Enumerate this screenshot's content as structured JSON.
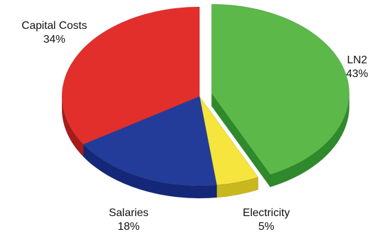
{
  "chart_data": {
    "type": "pie",
    "style": "3d-exploded",
    "slices": [
      {
        "name": "LN2",
        "value": 43,
        "value_label": "43%",
        "color": "#5cb848",
        "side_color": "#2e8a2a",
        "exploded": true
      },
      {
        "name": "Electricity",
        "value": 5,
        "value_label": "5%",
        "color": "#f5e53c",
        "side_color": "#c9b81d",
        "exploded": false
      },
      {
        "name": "Salaries",
        "value": 18,
        "value_label": "18%",
        "color": "#233c9a",
        "side_color": "#152778",
        "exploded": false
      },
      {
        "name": "Capital Costs",
        "value": 34,
        "value_label": "34%",
        "color": "#e22f2b",
        "side_color": "#a81b1b",
        "exploded": false
      }
    ]
  }
}
